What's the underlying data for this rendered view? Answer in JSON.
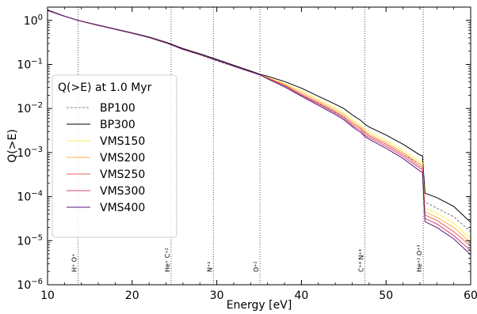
{
  "chart_data": {
    "type": "line",
    "xlabel": "Energy [eV]",
    "ylabel": "Q(>E)",
    "xlim": [
      10,
      60
    ],
    "ylim": [
      1e-06,
      2
    ],
    "yscale": "log",
    "grid": false,
    "legend": {
      "title": "Q(>E) at 1.0 Myr",
      "location": "center-left"
    },
    "x_ticks": [
      10,
      20,
      30,
      40,
      50,
      60
    ],
    "y_ticks": [
      {
        "value": 1e-06,
        "base": "10",
        "exp": "−6"
      },
      {
        "value": 1e-05,
        "base": "10",
        "exp": "−5"
      },
      {
        "value": 0.0001,
        "base": "10",
        "exp": "−4"
      },
      {
        "value": 0.001,
        "base": "10",
        "exp": "−3"
      },
      {
        "value": 0.01,
        "base": "10",
        "exp": "−2"
      },
      {
        "value": 0.1,
        "base": "10",
        "exp": "−1"
      },
      {
        "value": 1,
        "base": "10",
        "exp": "0"
      }
    ],
    "ionization_edges": [
      {
        "energy": 13.6,
        "label": "H⁺ O⁺"
      },
      {
        "energy": 24.6,
        "label": "He⁺ C⁺²"
      },
      {
        "energy": 29.6,
        "label": "N⁺²"
      },
      {
        "energy": 35.1,
        "label": "O⁺²"
      },
      {
        "energy": 47.5,
        "label": "C⁺³ N⁺³"
      },
      {
        "energy": 54.4,
        "label": "He⁺² O⁺³"
      }
    ],
    "series": [
      {
        "name": "BP100",
        "color": "#808080",
        "dash": "3,2",
        "x": [
          10,
          12,
          13.6,
          16,
          18,
          20,
          22,
          24,
          24.6,
          26,
          28,
          30,
          32,
          34,
          35.1,
          36,
          38,
          40,
          42,
          44,
          45,
          46,
          46.5,
          47,
          47.5,
          48,
          50,
          52,
          54,
          54.3,
          54.6,
          56,
          58,
          60
        ],
        "y": [
          1.75,
          1.25,
          1.0,
          0.78,
          0.64,
          0.52,
          0.41,
          0.31,
          0.28,
          0.22,
          0.165,
          0.12,
          0.09,
          0.068,
          0.058,
          0.049,
          0.033,
          0.021,
          0.0132,
          0.0082,
          0.0065,
          0.0046,
          0.004,
          0.0035,
          0.0029,
          0.0024,
          0.00155,
          0.00092,
          0.00055,
          0.00052,
          7.5e-05,
          5.5e-05,
          3.5e-05,
          1.6e-05
        ]
      },
      {
        "name": "BP300",
        "color": "#000000",
        "dash": "",
        "x": [
          10,
          12,
          13.6,
          16,
          18,
          20,
          22,
          24,
          24.6,
          26,
          28,
          30,
          32,
          34,
          35.1,
          36,
          38,
          40,
          42,
          44,
          45,
          46,
          46.5,
          47,
          47.5,
          48,
          50,
          52,
          54,
          54.3,
          54.6,
          56,
          58,
          60
        ],
        "y": [
          1.72,
          1.25,
          1.0,
          0.78,
          0.64,
          0.52,
          0.42,
          0.32,
          0.29,
          0.23,
          0.175,
          0.13,
          0.096,
          0.071,
          0.06,
          0.054,
          0.041,
          0.029,
          0.019,
          0.0125,
          0.01,
          0.0072,
          0.0062,
          0.0054,
          0.0044,
          0.0038,
          0.0025,
          0.00155,
          0.00088,
          0.00085,
          0.00012,
          9.5e-05,
          6e-05,
          2.6e-05
        ]
      },
      {
        "name": "VMS150",
        "color": "#FCF151",
        "dash": "",
        "x": [
          10,
          12,
          13.6,
          16,
          18,
          20,
          22,
          24,
          24.6,
          26,
          28,
          30,
          32,
          34,
          35.1,
          36,
          38,
          40,
          42,
          44,
          45,
          46,
          46.5,
          47,
          47.5,
          48,
          50,
          52,
          54,
          54.3,
          54.6,
          56,
          58,
          60
        ],
        "y": [
          1.68,
          1.24,
          1.0,
          0.77,
          0.63,
          0.51,
          0.41,
          0.31,
          0.28,
          0.22,
          0.168,
          0.125,
          0.092,
          0.068,
          0.058,
          0.051,
          0.037,
          0.025,
          0.016,
          0.0102,
          0.008,
          0.0056,
          0.0048,
          0.0042,
          0.0034,
          0.0029,
          0.0019,
          0.00115,
          0.00062,
          0.0006,
          5.5e-05,
          4.2e-05,
          2.5e-05,
          1.1e-05
        ]
      },
      {
        "name": "VMS200",
        "color": "#FDB147",
        "dash": "",
        "x": [
          10,
          12,
          13.6,
          16,
          18,
          20,
          22,
          24,
          24.6,
          26,
          28,
          30,
          32,
          34,
          35.1,
          36,
          38,
          40,
          42,
          44,
          45,
          46,
          46.5,
          47,
          47.5,
          48,
          50,
          52,
          54,
          54.3,
          54.6,
          56,
          58,
          60
        ],
        "y": [
          1.68,
          1.24,
          1.0,
          0.77,
          0.63,
          0.51,
          0.41,
          0.31,
          0.28,
          0.22,
          0.168,
          0.125,
          0.092,
          0.068,
          0.058,
          0.05,
          0.035,
          0.023,
          0.0148,
          0.0093,
          0.0073,
          0.0051,
          0.0044,
          0.0038,
          0.0031,
          0.0026,
          0.0017,
          0.00102,
          0.00055,
          0.00053,
          4.5e-05,
          3.4e-05,
          2e-05,
          9e-06
        ]
      },
      {
        "name": "VMS250",
        "color": "#F1605D",
        "dash": "",
        "x": [
          10,
          12,
          13.6,
          16,
          18,
          20,
          22,
          24,
          24.6,
          26,
          28,
          30,
          32,
          34,
          35.1,
          36,
          38,
          40,
          42,
          44,
          45,
          46,
          46.5,
          47,
          47.5,
          48,
          50,
          52,
          54,
          54.3,
          54.6,
          56,
          58,
          60
        ],
        "y": [
          1.68,
          1.24,
          1.0,
          0.77,
          0.63,
          0.51,
          0.41,
          0.31,
          0.28,
          0.22,
          0.168,
          0.125,
          0.092,
          0.068,
          0.058,
          0.049,
          0.034,
          0.021,
          0.0136,
          0.0085,
          0.0066,
          0.0046,
          0.004,
          0.0035,
          0.0028,
          0.0024,
          0.00155,
          0.00092,
          0.00049,
          0.00047,
          3.8e-05,
          2.9e-05,
          1.6e-05,
          7.5e-06
        ]
      },
      {
        "name": "VMS300",
        "color": "#D3436E",
        "dash": "",
        "x": [
          10,
          12,
          13.6,
          16,
          18,
          20,
          22,
          24,
          24.6,
          26,
          28,
          30,
          32,
          34,
          35.1,
          36,
          38,
          40,
          42,
          44,
          45,
          46,
          46.5,
          47,
          47.5,
          48,
          50,
          52,
          54,
          54.3,
          54.6,
          56,
          58,
          60
        ],
        "y": [
          1.68,
          1.24,
          1.0,
          0.77,
          0.63,
          0.51,
          0.41,
          0.31,
          0.28,
          0.22,
          0.168,
          0.125,
          0.092,
          0.068,
          0.058,
          0.048,
          0.033,
          0.02,
          0.0127,
          0.0079,
          0.0061,
          0.0042,
          0.0036,
          0.0032,
          0.0025,
          0.0022,
          0.0014,
          0.00083,
          0.00044,
          0.00042,
          3.2e-05,
          2.4e-05,
          1.3e-05,
          6e-06
        ]
      },
      {
        "name": "VMS400",
        "color": "#5A167E",
        "dash": "",
        "x": [
          10,
          12,
          13.6,
          16,
          18,
          20,
          22,
          24,
          24.6,
          26,
          28,
          30,
          32,
          34,
          35.1,
          36,
          38,
          40,
          42,
          44,
          45,
          46,
          46.5,
          47,
          47.5,
          48,
          50,
          52,
          54,
          54.3,
          54.6,
          56,
          58,
          60
        ],
        "y": [
          1.68,
          1.24,
          1.0,
          0.77,
          0.63,
          0.51,
          0.41,
          0.31,
          0.28,
          0.22,
          0.168,
          0.125,
          0.092,
          0.068,
          0.058,
          0.047,
          0.031,
          0.019,
          0.0118,
          0.0073,
          0.0056,
          0.0039,
          0.0033,
          0.0029,
          0.0023,
          0.002,
          0.00125,
          0.00074,
          0.00038,
          0.00036,
          2.7e-05,
          2e-05,
          1.1e-05,
          4.8e-06
        ]
      }
    ]
  }
}
